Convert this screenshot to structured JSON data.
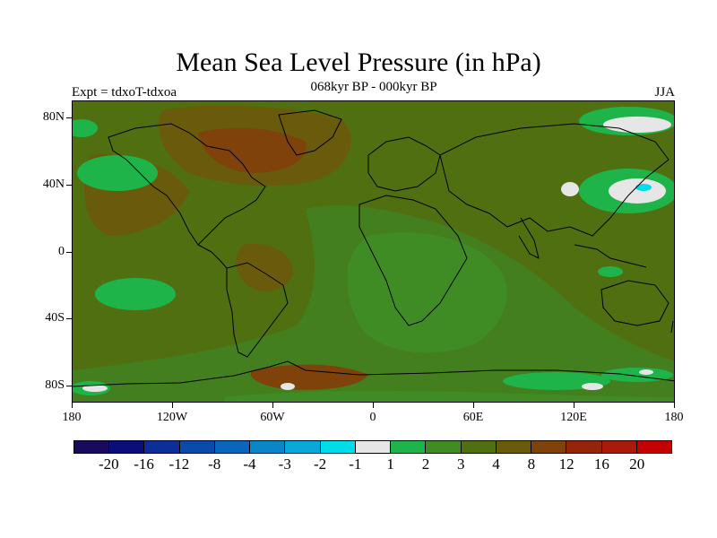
{
  "title": "Mean Sea Level Pressure (in hPa)",
  "subtitle": "068kyr BP - 000kyr BP",
  "experiment": "Expt = tdxoT-tdxoa",
  "season": "JJA",
  "y_ticks": [
    "80N",
    "40N",
    "0",
    "40S",
    "80S"
  ],
  "x_ticks": [
    "180",
    "120W",
    "60W",
    "0",
    "60E",
    "120E",
    "180"
  ],
  "colorbar": {
    "labels": [
      "-20",
      "-16",
      "-12",
      "-8",
      "-4",
      "-3",
      "-2",
      "-1",
      "1",
      "2",
      "3",
      "4",
      "8",
      "12",
      "16",
      "20"
    ],
    "colors": [
      "#1a0a5c",
      "#0b0e7a",
      "#0b2f96",
      "#0a4aa8",
      "#0a66bb",
      "#0a86c8",
      "#0aa8d8",
      "#00dde8",
      "#e6e6e6",
      "#1fb44a",
      "#3f8c24",
      "#4f6f10",
      "#6a5a0c",
      "#7e420a",
      "#952508",
      "#a81a0a",
      "#c40000"
    ]
  },
  "map_colors": {
    "ocean_base": "#4a7a1c",
    "land_base": "#4f6f10",
    "warm": "#6a5a0c",
    "hot": "#7e420a",
    "light_green": "#1fb44a",
    "white": "#e6e6e6",
    "cyan": "#00dde8"
  }
}
